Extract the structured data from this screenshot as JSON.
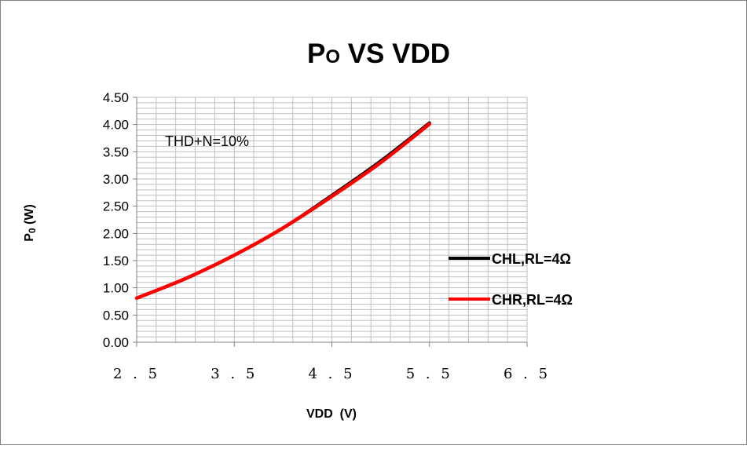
{
  "chart_data": {
    "type": "line",
    "title_main": "P",
    "title_sub": "O",
    "title_rest": " VS VDD",
    "ylabel_main": "P",
    "ylabel_sub": "0",
    "ylabel_rest": " (W)",
    "xlabel": "VDD  (V)",
    "annotation": "THD+N=10%",
    "xlim": [
      2.5,
      6.5
    ],
    "ylim": [
      0,
      4.5
    ],
    "x_ticks": [
      "2.5",
      "3.5",
      "4.5",
      "5.5",
      "6.5"
    ],
    "y_ticks": [
      "0.00",
      "0.50",
      "1.00",
      "1.50",
      "2.00",
      "2.50",
      "3.00",
      "3.50",
      "4.00",
      "4.50"
    ],
    "grid": true,
    "legend_position": "right",
    "series": [
      {
        "name": "CHL,RL=4Ω",
        "color": "#000000",
        "x": [
          2.5,
          3.0,
          3.5,
          4.0,
          4.5,
          5.0,
          5.5
        ],
        "y": [
          0.81,
          1.17,
          1.6,
          2.1,
          2.7,
          3.33,
          4.03
        ]
      },
      {
        "name": "CHR,RL=4Ω",
        "color": "#ff0000",
        "x": [
          2.5,
          3.0,
          3.5,
          4.0,
          4.5,
          5.0,
          5.5
        ],
        "y": [
          0.81,
          1.17,
          1.6,
          2.1,
          2.68,
          3.3,
          4.01
        ]
      }
    ]
  }
}
